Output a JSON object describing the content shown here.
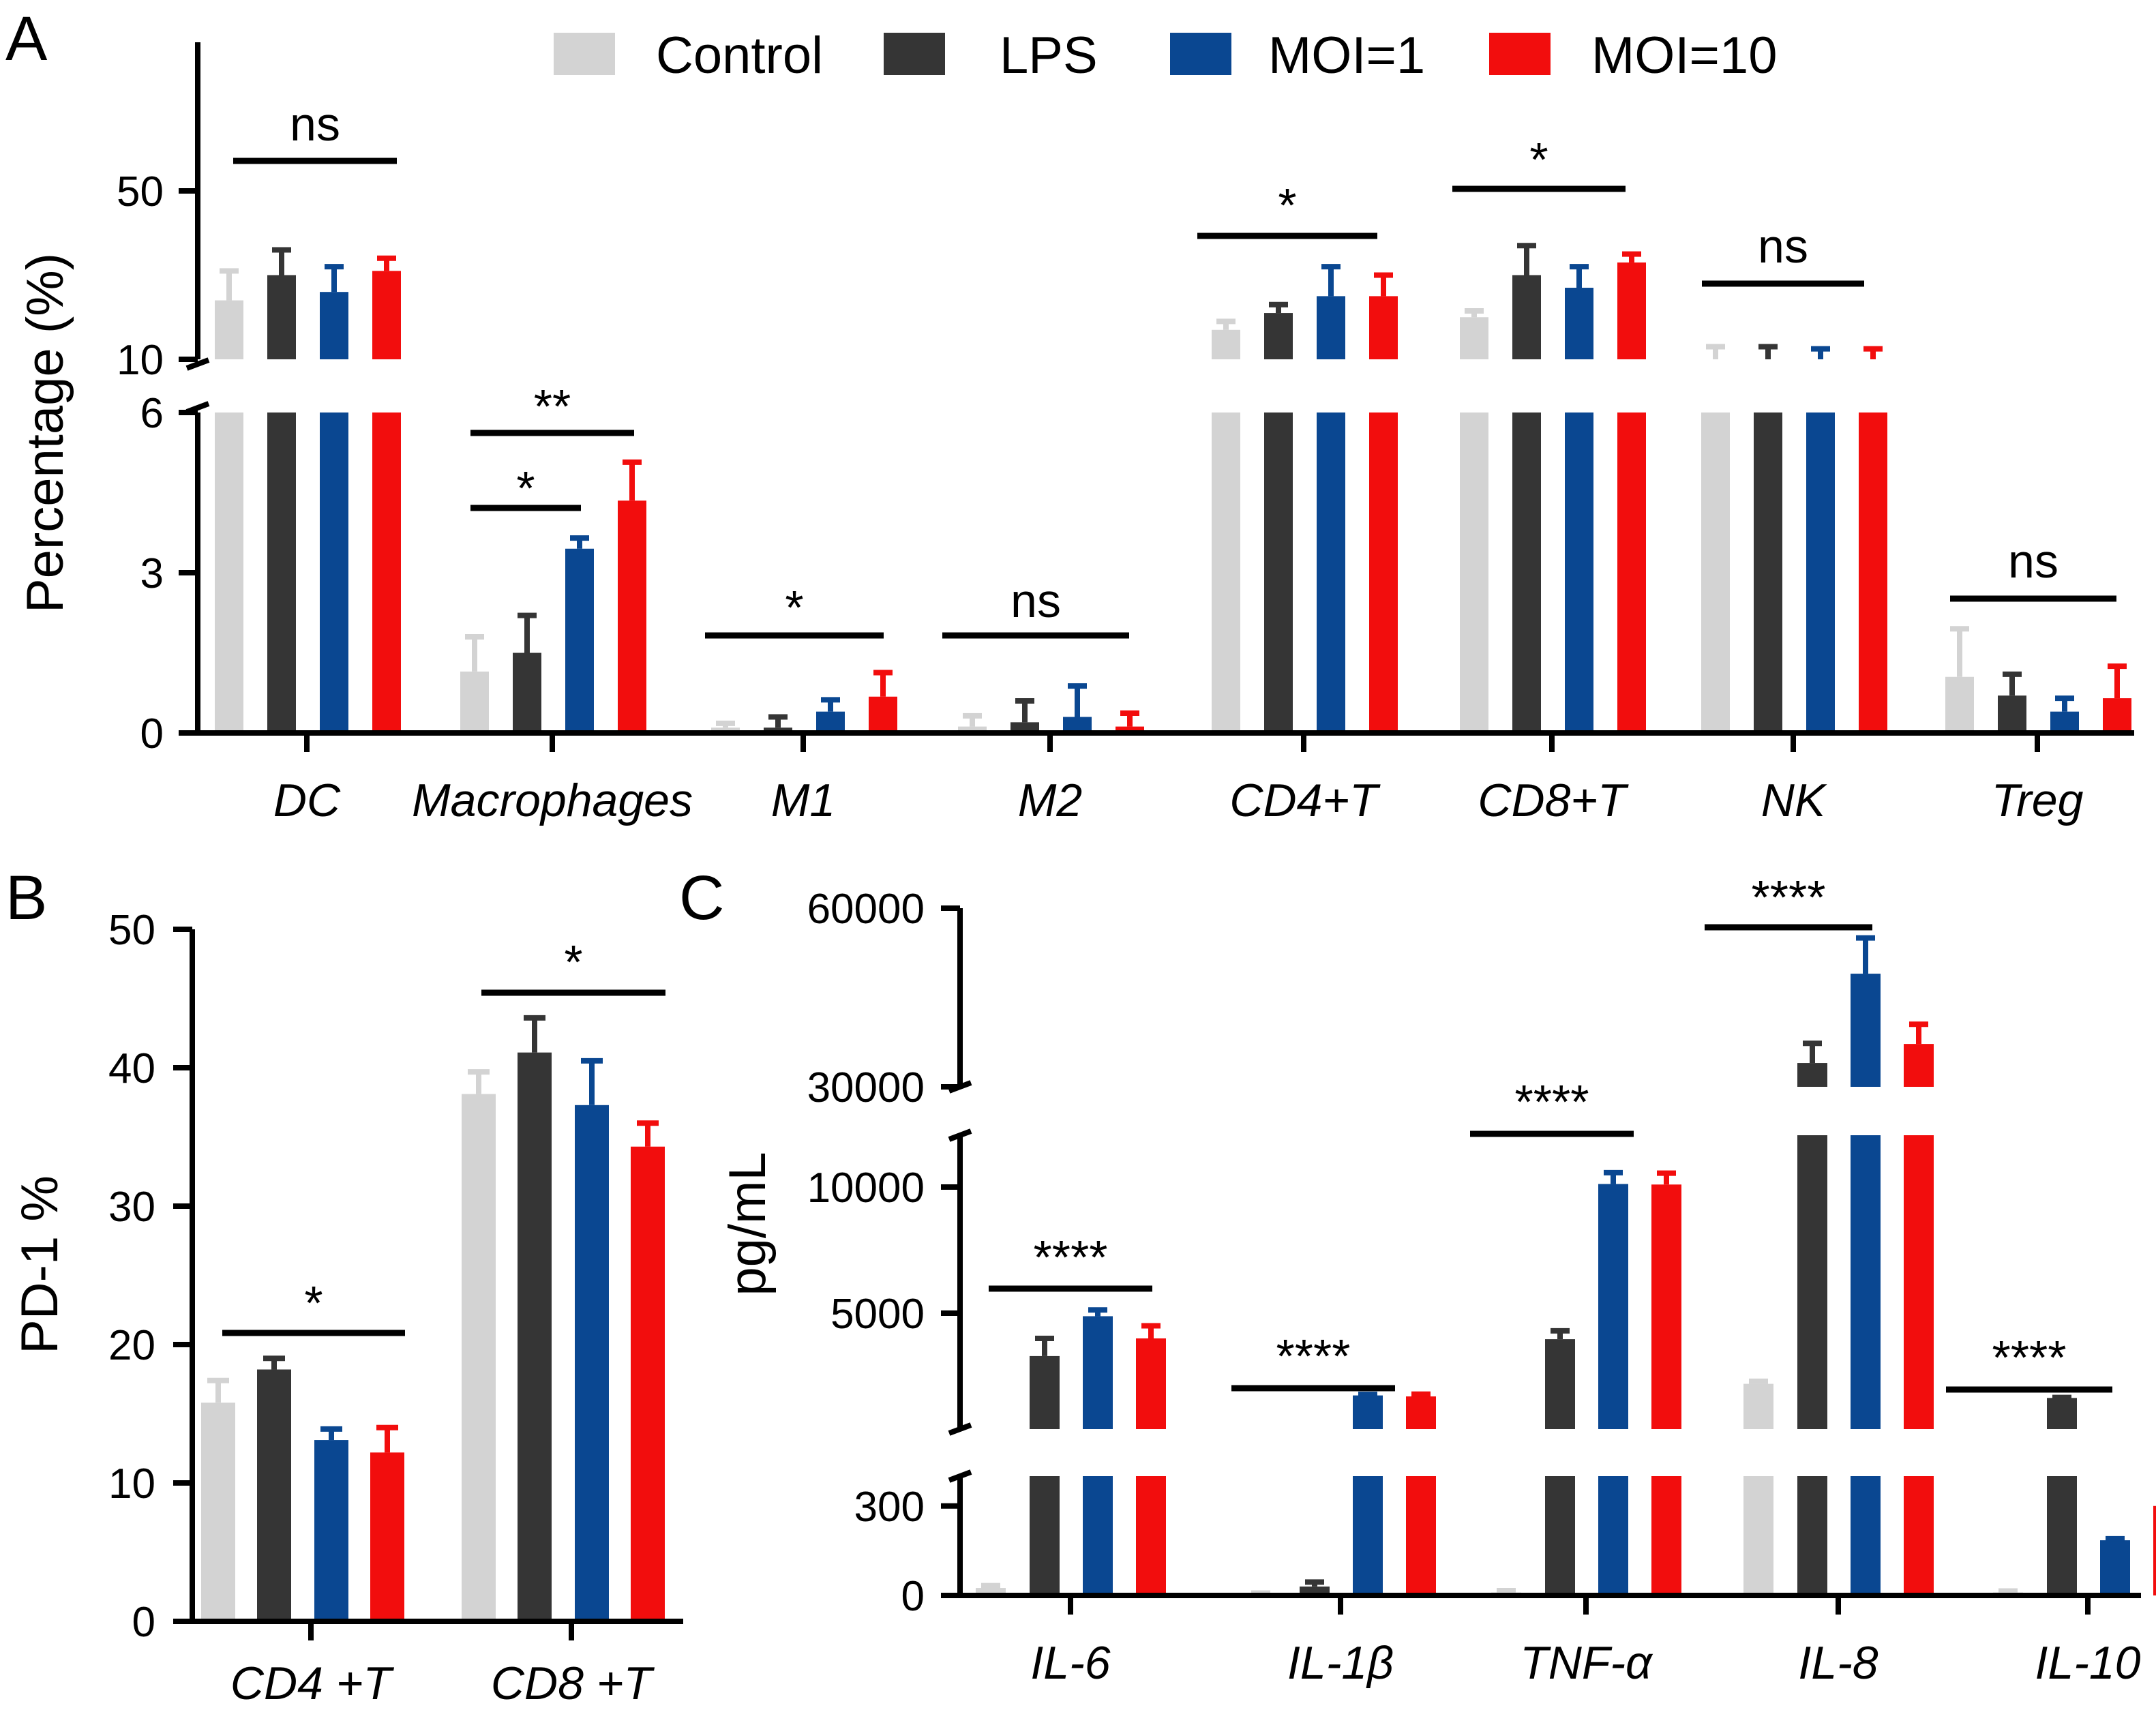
{
  "legend": {
    "groups": [
      "Control",
      "LPS",
      "MOI=1",
      "MOI=10"
    ],
    "colors": [
      "#d3d3d3",
      "#353535",
      "#0a4791",
      "#f20d0d"
    ]
  },
  "chart_data": [
    {
      "panel": "A",
      "type": "bar",
      "ylabel": "Percentage (%)",
      "axis_break": {
        "lower_range": [
          0,
          6
        ],
        "upper_range": [
          10,
          50
        ]
      },
      "lower_ticks": [
        "0",
        "3",
        "6"
      ],
      "upper_ticks": [
        "10",
        "50"
      ],
      "categories": [
        "DC",
        "Macrophages",
        "M1",
        "M2",
        "CD4+T",
        "CD8+T",
        "NK",
        "Treg"
      ],
      "series": [
        {
          "name": "Control",
          "values": [
            24,
            1.15,
            0.1,
            0.12,
            17,
            20,
            10,
            1.05
          ],
          "errors": [
            7,
            0.65,
            0.08,
            0.2,
            2,
            1.5,
            3,
            0.9
          ]
        },
        {
          "name": "LPS",
          "values": [
            30,
            1.5,
            0.1,
            0.2,
            21,
            30,
            10,
            0.7
          ],
          "errors": [
            6,
            0.7,
            0.2,
            0.4,
            2,
            7,
            3,
            0.4
          ]
        },
        {
          "name": "MOI=1",
          "values": [
            26,
            3.45,
            0.4,
            0.3,
            25,
            27,
            9.5,
            0.4
          ],
          "errors": [
            6,
            0.2,
            0.22,
            0.58,
            7,
            5,
            3,
            0.25
          ]
        },
        {
          "name": "MOI=10",
          "values": [
            31,
            4.35,
            0.68,
            0.12,
            25,
            33,
            9.5,
            0.65
          ],
          "errors": [
            3,
            0.72,
            0.45,
            0.25,
            5,
            2,
            3,
            0.6
          ]
        }
      ],
      "significance": [
        {
          "label": "ns",
          "category": "DC"
        },
        {
          "label": "*",
          "category": "Macrophages"
        },
        {
          "label": "**",
          "category": "Macrophages"
        },
        {
          "label": "*",
          "category": "M1"
        },
        {
          "label": "ns",
          "category": "M2"
        },
        {
          "label": "*",
          "category": "CD4+T"
        },
        {
          "label": "*",
          "category": "CD8+T"
        },
        {
          "label": "ns",
          "category": "NK"
        },
        {
          "label": "ns",
          "category": "Treg"
        }
      ]
    },
    {
      "panel": "B",
      "type": "bar",
      "ylabel": "PD-1 %",
      "ylim": [
        0,
        50
      ],
      "yticks": [
        "0",
        "10",
        "20",
        "30",
        "40",
        "50"
      ],
      "categories": [
        "CD4 +T",
        "CD8 +T"
      ],
      "series": [
        {
          "name": "Control",
          "values": [
            15.8,
            38.1
          ],
          "errors": [
            1.6,
            1.6
          ]
        },
        {
          "name": "LPS",
          "values": [
            18.2,
            41.1
          ],
          "errors": [
            0.8,
            2.5
          ]
        },
        {
          "name": "MOI=1",
          "values": [
            13.1,
            37.3
          ],
          "errors": [
            0.8,
            3.2
          ]
        },
        {
          "name": "MOI=10",
          "values": [
            12.2,
            34.3
          ],
          "errors": [
            1.8,
            1.7
          ]
        }
      ],
      "significance": [
        {
          "label": "*",
          "category": "CD4 +T"
        },
        {
          "label": "*",
          "category": "CD8 +T"
        }
      ]
    },
    {
      "panel": "C",
      "type": "bar",
      "ylabel": "pg/mL",
      "axis_break": {
        "lower_range": [
          0,
          400
        ],
        "middle_range": [
          400,
          11500
        ],
        "upper_range": [
          30000,
          60000
        ]
      },
      "yticks": [
        "0",
        "300",
        "5000",
        "10000",
        "30000",
        "60000"
      ],
      "categories": [
        "IL-6",
        "IL-1β",
        "TNF-α",
        "IL-8",
        "IL-10"
      ],
      "series": [
        {
          "name": "Control",
          "values": [
            25,
            5,
            10,
            2200,
            10
          ],
          "errors": [
            8,
            3,
            6,
            100,
            5
          ]
        },
        {
          "name": "LPS",
          "values": [
            3300,
            30,
            3970,
            34000,
            1640
          ],
          "errors": [
            700,
            15,
            330,
            3300,
            20
          ]
        },
        {
          "name": "MOI=1",
          "values": [
            4880,
            1740,
            10120,
            49000,
            185
          ],
          "errors": [
            250,
            40,
            450,
            6000,
            5
          ]
        },
        {
          "name": "MOI=10",
          "values": [
            4000,
            1700,
            10100,
            37200,
            300
          ],
          "errors": [
            500,
            90,
            450,
            3300,
            40
          ]
        }
      ],
      "significance": [
        {
          "label": "****",
          "category": "IL-6"
        },
        {
          "label": "****",
          "category": "IL-1β"
        },
        {
          "label": "****",
          "category": "TNF-α"
        },
        {
          "label": "****",
          "category": "IL-8"
        },
        {
          "label": "****",
          "category": "IL-10"
        }
      ]
    }
  ]
}
